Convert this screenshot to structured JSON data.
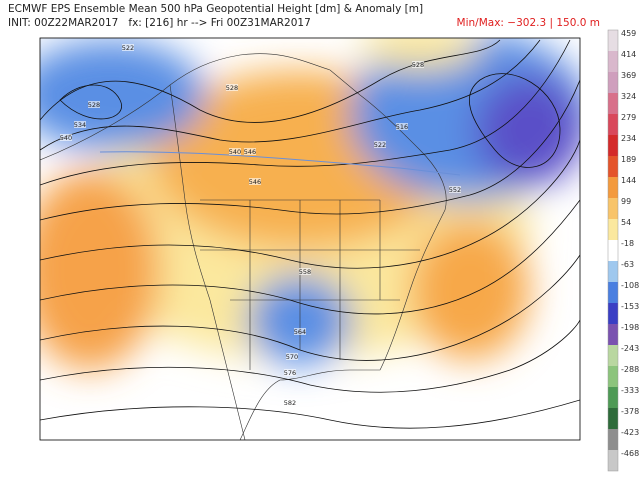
{
  "header": {
    "title": "ECMWF EPS Ensemble Mean 500 hPa Geopotential Height [dm] & Anomaly [m]",
    "init": "INIT: 00Z22MAR2017   fx: [216] hr --> Fri 00Z31MAR2017",
    "minmax": "Min/Max: −302.3 | 150.0 m"
  },
  "colorbar": {
    "labels": [
      459,
      414,
      369,
      324,
      279,
      234,
      189,
      144,
      99,
      54,
      -18,
      -63,
      -108,
      -153,
      -198,
      -243,
      -288,
      -333,
      -378,
      -423,
      -468
    ],
    "colors": [
      "#e6dde3",
      "#d9b8cc",
      "#cf9fbd",
      "#d8708a",
      "#d9485b",
      "#d42a2a",
      "#e4542b",
      "#f39a3e",
      "#f8c46a",
      "#fbe89e",
      "#ffffff",
      "#9fc8ee",
      "#4a7fe0",
      "#3a3fc4",
      "#7a52b0",
      "#b9d7a0",
      "#8cc47c",
      "#4e9a55",
      "#2e6b3a",
      "#8e8e8e",
      "#c8c8c8"
    ]
  },
  "contour_labels": [
    "522",
    "528",
    "534",
    "540",
    "546",
    "528",
    "522",
    "516",
    "528",
    "540",
    "546",
    "552",
    "558",
    "564",
    "570",
    "576",
    "582"
  ]
}
